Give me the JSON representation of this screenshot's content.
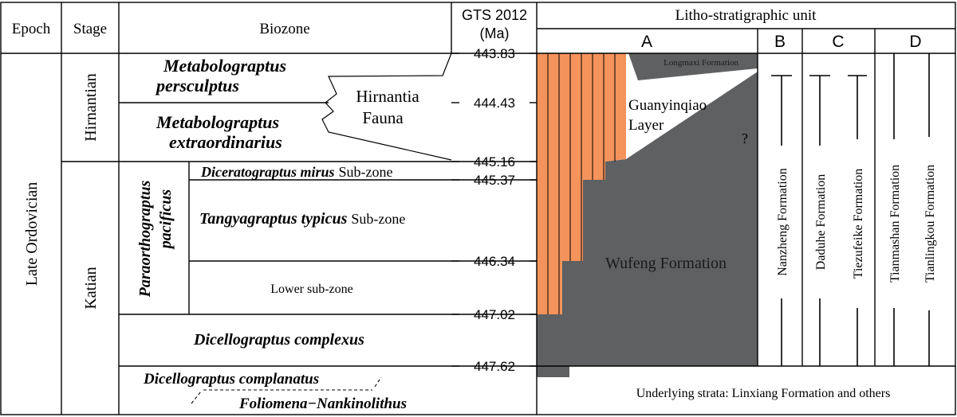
{
  "headers": {
    "epoch": "Epoch",
    "stage": "Stage",
    "biozone": "Biozone",
    "gts_line1": "GTS 2012",
    "gts_line2": "(Ma)",
    "litho": "Litho-stratigraphic unit",
    "col_a": "A",
    "col_b": "B",
    "col_c": "C",
    "col_d": "D"
  },
  "epoch": {
    "name": "Late Ordovician"
  },
  "stages": {
    "hirnantian": "Hirnantian",
    "katian": "Katian"
  },
  "biozones": {
    "persculptus_1": "Metabolograptus",
    "persculptus_2": "persculptus",
    "extraordinarius_1": "Metabolograptus",
    "extraordinarius_2": "extraordinarius",
    "hirnantia_1": "Hirnantia",
    "hirnantia_2": "Fauna",
    "pacificus_1": "Paraorthograptus",
    "pacificus_2": "pacificus",
    "mirus": "Diceratograptus mirus",
    "mirus_suffix": "Sub-zone",
    "typicus": "Tangyagraptus typicus",
    "typicus_suffix": "Sub-zone",
    "lower": "Lower sub-zone",
    "complexus": "Dicellograptus complexus",
    "complanatus": "Dicellograptus complanatus",
    "foliomena": "Foliomena−Nankinolithus"
  },
  "ages": [
    "443.83",
    "444.43",
    "445.16",
    "445.37",
    "446.34",
    "447.02",
    "447.62"
  ],
  "litho": {
    "longmaxi": "Longmaxi Formation",
    "guanyinqiao_1": "Guanyinqiao",
    "guanyinqiao_2": "Layer",
    "question": "?",
    "wufeng": "Wufeng Formation",
    "nanzheng": "Nanzheng Formation",
    "daduhe": "Daduhe Formation",
    "tiezufeike": "Tiezufeike Formation",
    "tianmashan": "Tianmashan Formation",
    "tianlingkou": "Tianlingkou Formation",
    "underlying": "Underlying strata: Linxiang Formation and others"
  },
  "colors": {
    "orange": "#F4935B",
    "gray": "#5F6062",
    "line": "#000000"
  }
}
